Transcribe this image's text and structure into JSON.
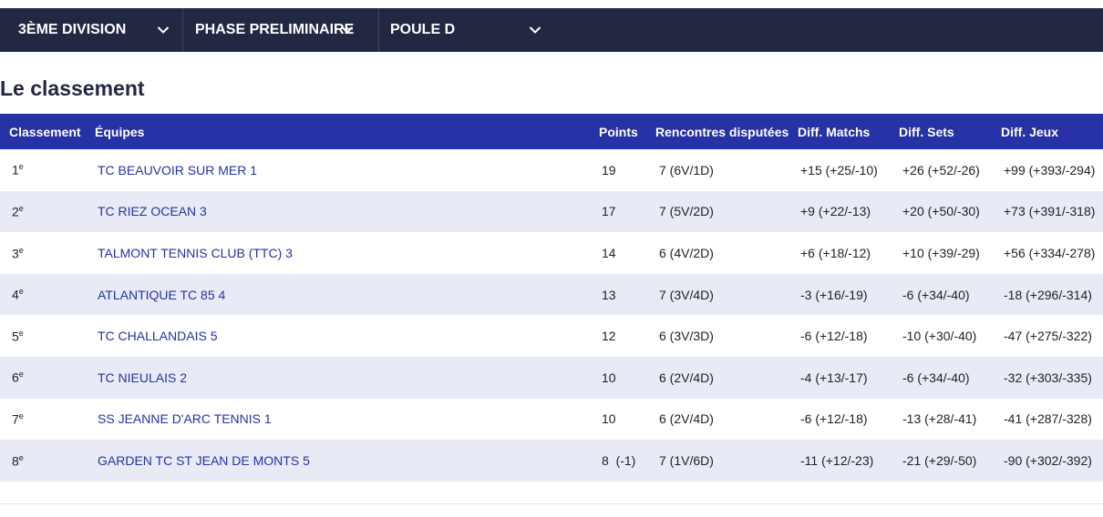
{
  "filters": {
    "division": "3ÈME DIVISION",
    "phase": "PHASE PRELIMINAIRE",
    "poule": "POULE D"
  },
  "heading": "Le classement",
  "columns": [
    "Classement",
    "Équipes",
    "Points",
    "Rencontres disputées",
    "Diff. Matchs",
    "Diff. Sets",
    "Diff. Jeux"
  ],
  "rows": [
    {
      "rank": "1",
      "sup": "e",
      "team": "TC BEAUVOIR SUR MER 1",
      "points": "19",
      "played": "7 (6V/1D)",
      "matchs": "+15 (+25/-10)",
      "sets": "+26 (+52/-26)",
      "jeux": "+99 (+393/-294)"
    },
    {
      "rank": "2",
      "sup": "e",
      "team": "TC RIEZ OCEAN 3",
      "points": "17",
      "played": "7 (5V/2D)",
      "matchs": "+9 (+22/-13)",
      "sets": "+20 (+50/-30)",
      "jeux": "+73 (+391/-318)"
    },
    {
      "rank": "3",
      "sup": "e",
      "team": "TALMONT TENNIS CLUB (TTC) 3",
      "points": "14",
      "played": "6 (4V/2D)",
      "matchs": "+6 (+18/-12)",
      "sets": "+10 (+39/-29)",
      "jeux": "+56 (+334/-278)"
    },
    {
      "rank": "4",
      "sup": "e",
      "team": "ATLANTIQUE TC 85 4",
      "points": "13",
      "played": "7 (3V/4D)",
      "matchs": "-3 (+16/-19)",
      "sets": "-6 (+34/-40)",
      "jeux": "-18 (+296/-314)"
    },
    {
      "rank": "5",
      "sup": "e",
      "team": "TC CHALLANDAIS 5",
      "points": "12",
      "played": "6 (3V/3D)",
      "matchs": "-6 (+12/-18)",
      "sets": "-10 (+30/-40)",
      "jeux": "-47 (+275/-322)"
    },
    {
      "rank": "6",
      "sup": "e",
      "team": "TC NIEULAIS 2",
      "points": "10",
      "played": "6 (2V/4D)",
      "matchs": "-4 (+13/-17)",
      "sets": "-6 (+34/-40)",
      "jeux": "-32 (+303/-335)"
    },
    {
      "rank": "7",
      "sup": "e",
      "team": "SS JEANNE D'ARC TENNIS 1",
      "points": "10",
      "played": "6 (2V/4D)",
      "matchs": "-6 (+12/-18)",
      "sets": "-13 (+28/-41)",
      "jeux": "-41 (+287/-328)"
    },
    {
      "rank": "8",
      "sup": "e",
      "team": "GARDEN TC ST JEAN DE MONTS 5",
      "points": "8  (-1)",
      "played": "7 (1V/6D)",
      "matchs": "-11 (+12/-23)",
      "sets": "-21 (+29/-50)",
      "jeux": "-90 (+302/-392)"
    }
  ]
}
